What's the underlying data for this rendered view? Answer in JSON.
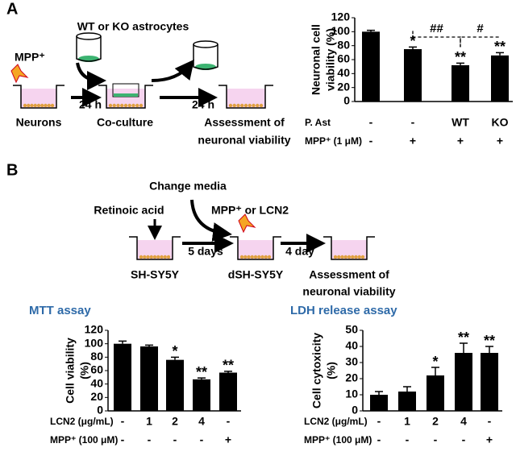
{
  "panel_a": {
    "letter": "A",
    "astrocytes": "WT or KO astrocytes",
    "toxin": "MPP⁺",
    "step1": "24 h",
    "step2": "24 h",
    "neurons": "Neurons",
    "coculture": "Co-culture",
    "assessment": [
      "Assessment of",
      "neuronal viability"
    ]
  },
  "panel_b": {
    "letter": "B",
    "change": "Change media",
    "retinoic": "Retinoic acid",
    "treatment": "MPP⁺ or LCN2",
    "step1": "5 days",
    "step2": "4 day",
    "cells": "SH-SY5Y",
    "dcells": "dSH-SY5Y",
    "assessment": [
      "Assessment of",
      "neuronal viability"
    ]
  },
  "chart_data": [
    {
      "type": "bar",
      "ylabel": [
        "Neuronal cell",
        "viability (%)"
      ],
      "values": [
        100,
        75,
        52,
        66
      ],
      "errors": [
        2,
        3,
        3,
        4
      ],
      "stars": [
        null,
        "*",
        "**",
        "**"
      ],
      "brackets": [
        "##",
        "#"
      ],
      "color": "#000000",
      "ylim": [
        0,
        120
      ],
      "yticks": [
        0,
        20,
        40,
        60,
        80,
        100,
        120
      ],
      "rows": [
        {
          "label": "P. Ast",
          "values": [
            "-",
            "-",
            "WT",
            "KO"
          ]
        },
        {
          "label": "MPP⁺ (1 μM)",
          "values": [
            "-",
            "+",
            "+",
            "+"
          ]
        }
      ]
    },
    {
      "type": "bar",
      "title": "MTT assay",
      "ylabel": [
        "Cell viability",
        "(%)"
      ],
      "values": [
        100,
        96,
        76,
        47,
        57
      ],
      "errors": [
        4,
        2,
        4,
        2,
        2
      ],
      "stars": [
        null,
        null,
        "*",
        "**",
        "**"
      ],
      "color": "#000000",
      "ylim": [
        0,
        120
      ],
      "yticks": [
        0,
        20,
        40,
        60,
        80,
        100,
        120
      ],
      "rows": [
        {
          "label": "LCN2 (μg/mL)",
          "values": [
            "-",
            "1",
            "2",
            "4",
            "-"
          ]
        },
        {
          "label": "MPP⁺ (100 μM)",
          "values": [
            "-",
            "-",
            "-",
            "-",
            "+"
          ]
        }
      ]
    },
    {
      "type": "bar",
      "title": "LDH release assay",
      "ylabel": [
        "Cell cytoxicity",
        "(%)"
      ],
      "values": [
        10,
        12,
        22,
        36,
        36
      ],
      "errors": [
        2,
        3,
        5,
        6,
        4
      ],
      "stars": [
        null,
        null,
        "*",
        "**",
        "**"
      ],
      "color": "#000000",
      "ylim": [
        0,
        50
      ],
      "yticks": [
        0,
        10,
        20,
        30,
        40,
        50
      ],
      "rows": [
        {
          "label": "LCN2 (μg/mL)",
          "values": [
            "-",
            "1",
            "2",
            "4",
            "-"
          ]
        },
        {
          "label": "MPP⁺ (100 μM)",
          "values": [
            "-",
            "-",
            "-",
            "-",
            "+"
          ]
        }
      ]
    }
  ]
}
